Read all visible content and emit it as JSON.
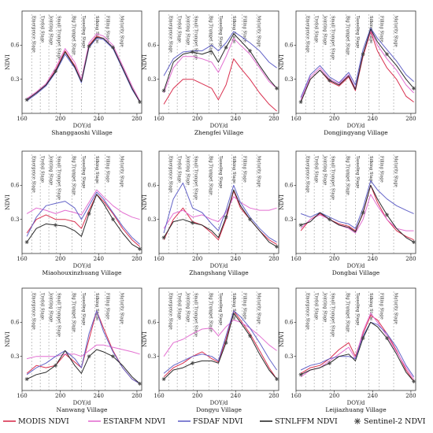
{
  "chart_data": {
    "type": "line",
    "xlabel": "DOY/d",
    "ylabel": "NDVI",
    "xlim": [
      160,
      285
    ],
    "ylim": [
      0,
      0.9
    ],
    "xticks": [
      160,
      200,
      240,
      280
    ],
    "yticks": [
      0.3,
      0.6
    ],
    "grid": false,
    "legend_position": "bottom",
    "colors": {
      "MODIS NDVI": "#d9304f",
      "ESTARFM NDVI": "#e36fd1",
      "FSDAF NDVI": "#6464c8",
      "STNLFFM NDVI": "#2a2a2a",
      "Sentinel-2 NDVI": "#444444"
    },
    "legend": [
      "MODIS NDVI",
      "ESTARFM NDVI",
      "FSDAF NDVI",
      "STNLFFM NDVI",
      "Sentinel-2 NDVI"
    ],
    "stages": [
      {
        "label": "Emergence Stage",
        "x": 170
      },
      {
        "label": "Trefoil Stage",
        "x": 179
      },
      {
        "label": "Jointing Stage",
        "x": 188
      },
      {
        "label": "Small Trumpet Stage",
        "x": 196
      },
      {
        "label": "Big Trumpet Stage",
        "x": 212
      },
      {
        "label": "Tasseling Stage",
        "x": 222
      },
      {
        "label": "Silking Stage",
        "x": 236
      },
      {
        "label": "Filling Stage",
        "x": 247
      },
      {
        "label": "Maturity Stage",
        "x": 262
      }
    ],
    "panels": [
      {
        "title": "Shanggaoshi Village",
        "x": [
          165,
          175,
          185,
          195,
          205,
          215,
          222,
          230,
          238,
          245,
          255,
          265,
          275,
          283
        ],
        "series": [
          {
            "name": "MODIS NDVI",
            "values": [
              0.12,
              0.18,
              0.25,
              0.38,
              0.55,
              0.42,
              0.28,
              0.6,
              0.68,
              0.66,
              0.58,
              0.4,
              0.22,
              0.1
            ]
          },
          {
            "name": "ESTARFM NDVI",
            "values": [
              0.13,
              0.19,
              0.26,
              0.4,
              0.57,
              0.45,
              0.3,
              0.62,
              0.7,
              0.68,
              0.6,
              0.42,
              0.24,
              0.11
            ]
          },
          {
            "name": "FSDAF NDVI",
            "values": [
              0.11,
              0.17,
              0.24,
              0.36,
              0.52,
              0.4,
              0.27,
              0.58,
              0.66,
              0.65,
              0.57,
              0.39,
              0.21,
              0.1
            ]
          },
          {
            "name": "STNLFFM NDVI",
            "values": [
              0.12,
              0.18,
              0.25,
              0.37,
              0.54,
              0.41,
              0.28,
              0.59,
              0.67,
              0.66,
              0.58,
              0.4,
              0.22,
              0.1
            ]
          }
        ]
      },
      {
        "title": "Zhengfei Village",
        "x": [
          165,
          175,
          185,
          195,
          205,
          215,
          222,
          230,
          238,
          245,
          255,
          265,
          275,
          283
        ],
        "series": [
          {
            "name": "MODIS NDVI",
            "values": [
              0.08,
              0.22,
              0.3,
              0.3,
              0.26,
              0.22,
              0.12,
              0.25,
              0.48,
              0.4,
              0.3,
              0.18,
              0.08,
              0.02
            ]
          },
          {
            "name": "ESTARFM NDVI",
            "values": [
              0.18,
              0.4,
              0.5,
              0.5,
              0.48,
              0.45,
              0.36,
              0.5,
              0.66,
              0.6,
              0.52,
              0.4,
              0.28,
              0.22
            ]
          },
          {
            "name": "FSDAF NDVI",
            "values": [
              0.33,
              0.48,
              0.54,
              0.55,
              0.55,
              0.6,
              0.55,
              0.62,
              0.72,
              0.68,
              0.62,
              0.55,
              0.45,
              0.4
            ]
          },
          {
            "name": "STNLFFM NDVI",
            "values": [
              0.2,
              0.45,
              0.52,
              0.54,
              0.52,
              0.55,
              0.45,
              0.58,
              0.7,
              0.64,
              0.55,
              0.42,
              0.3,
              0.22
            ]
          }
        ]
      },
      {
        "title": "Dongjingyang Village",
        "x": [
          165,
          175,
          185,
          195,
          205,
          215,
          222,
          230,
          238,
          245,
          255,
          265,
          275,
          283
        ],
        "series": [
          {
            "name": "MODIS NDVI",
            "values": [
              0.1,
              0.3,
              0.38,
              0.28,
              0.24,
              0.32,
              0.2,
              0.5,
              0.72,
              0.55,
              0.4,
              0.3,
              0.15,
              0.1
            ]
          },
          {
            "name": "ESTARFM NDVI",
            "values": [
              0.12,
              0.32,
              0.4,
              0.3,
              0.26,
              0.34,
              0.22,
              0.52,
              0.73,
              0.6,
              0.48,
              0.38,
              0.25,
              0.18
            ]
          },
          {
            "name": "FSDAF NDVI",
            "values": [
              0.14,
              0.34,
              0.42,
              0.32,
              0.27,
              0.36,
              0.25,
              0.56,
              0.75,
              0.66,
              0.56,
              0.46,
              0.34,
              0.28
            ]
          },
          {
            "name": "STNLFFM NDVI",
            "values": [
              0.1,
              0.3,
              0.38,
              0.29,
              0.25,
              0.33,
              0.21,
              0.52,
              0.74,
              0.63,
              0.52,
              0.42,
              0.3,
              0.22
            ]
          }
        ]
      },
      {
        "title": "Miaohouxinzhuang Village",
        "x": [
          165,
          175,
          185,
          195,
          205,
          215,
          222,
          230,
          238,
          245,
          255,
          265,
          275,
          283
        ],
        "series": [
          {
            "name": "MODIS NDVI",
            "values": [
              0.18,
              0.3,
              0.34,
              0.3,
              0.3,
              0.28,
              0.22,
              0.38,
              0.52,
              0.46,
              0.35,
              0.22,
              0.12,
              0.06
            ]
          },
          {
            "name": "ESTARFM NDVI",
            "values": [
              0.35,
              0.4,
              0.38,
              0.35,
              0.38,
              0.36,
              0.34,
              0.45,
              0.56,
              0.5,
              0.42,
              0.36,
              0.32,
              0.3
            ]
          },
          {
            "name": "FSDAF NDVI",
            "values": [
              0.15,
              0.32,
              0.42,
              0.44,
              0.46,
              0.4,
              0.3,
              0.42,
              0.54,
              0.48,
              0.36,
              0.24,
              0.14,
              0.08
            ]
          },
          {
            "name": "STNLFFM NDVI",
            "values": [
              0.1,
              0.22,
              0.26,
              0.25,
              0.24,
              0.2,
              0.15,
              0.35,
              0.52,
              0.44,
              0.3,
              0.18,
              0.08,
              0.04
            ]
          }
        ]
      },
      {
        "title": "Zhangshang Village",
        "x": [
          165,
          175,
          185,
          195,
          205,
          215,
          222,
          230,
          238,
          245,
          255,
          265,
          275,
          283
        ],
        "series": [
          {
            "name": "MODIS NDVI",
            "values": [
              0.12,
              0.3,
              0.4,
              0.28,
              0.25,
              0.18,
              0.12,
              0.3,
              0.55,
              0.4,
              0.3,
              0.2,
              0.12,
              0.08
            ]
          },
          {
            "name": "ESTARFM NDVI",
            "values": [
              0.22,
              0.35,
              0.38,
              0.32,
              0.34,
              0.3,
              0.28,
              0.36,
              0.5,
              0.45,
              0.4,
              0.38,
              0.38,
              0.4
            ]
          },
          {
            "name": "FSDAF NDVI",
            "values": [
              0.18,
              0.48,
              0.62,
              0.4,
              0.36,
              0.26,
              0.2,
              0.38,
              0.6,
              0.45,
              0.32,
              0.22,
              0.14,
              0.1
            ]
          },
          {
            "name": "STNLFFM NDVI",
            "values": [
              0.14,
              0.28,
              0.3,
              0.27,
              0.25,
              0.2,
              0.14,
              0.32,
              0.56,
              0.42,
              0.3,
              0.2,
              0.1,
              0.06
            ]
          }
        ]
      },
      {
        "title": "Dongbai Village",
        "x": [
          165,
          175,
          185,
          195,
          205,
          215,
          222,
          230,
          238,
          245,
          255,
          265,
          275,
          283
        ],
        "series": [
          {
            "name": "MODIS NDVI",
            "values": [
              0.2,
              0.3,
              0.35,
              0.3,
              0.26,
              0.24,
              0.2,
              0.35,
              0.6,
              0.45,
              0.3,
              0.2,
              0.15,
              0.12
            ]
          },
          {
            "name": "ESTARFM NDVI",
            "values": [
              0.22,
              0.3,
              0.34,
              0.3,
              0.25,
              0.22,
              0.18,
              0.3,
              0.52,
              0.42,
              0.3,
              0.22,
              0.2,
              0.2
            ]
          },
          {
            "name": "FSDAF NDVI",
            "values": [
              0.35,
              0.32,
              0.36,
              0.32,
              0.28,
              0.26,
              0.22,
              0.4,
              0.64,
              0.56,
              0.48,
              0.42,
              0.38,
              0.35
            ]
          },
          {
            "name": "STNLFFM NDVI",
            "values": [
              0.25,
              0.28,
              0.36,
              0.3,
              0.25,
              0.23,
              0.19,
              0.36,
              0.6,
              0.48,
              0.34,
              0.22,
              0.14,
              0.1
            ]
          }
        ]
      },
      {
        "title": "Nanwang Village",
        "x": [
          165,
          175,
          185,
          195,
          205,
          215,
          222,
          230,
          238,
          245,
          255,
          265,
          275,
          283
        ],
        "series": [
          {
            "name": "MODIS NDVI",
            "values": [
              0.15,
              0.22,
              0.2,
              0.22,
              0.32,
              0.25,
              0.2,
              0.45,
              0.7,
              0.55,
              0.35,
              0.2,
              0.1,
              0.06
            ]
          },
          {
            "name": "ESTARFM NDVI",
            "values": [
              0.28,
              0.3,
              0.3,
              0.3,
              0.32,
              0.32,
              0.3,
              0.35,
              0.4,
              0.4,
              0.38,
              0.36,
              0.34,
              0.32
            ]
          },
          {
            "name": "FSDAF NDVI",
            "values": [
              0.14,
              0.2,
              0.24,
              0.3,
              0.35,
              0.28,
              0.2,
              0.5,
              0.7,
              0.52,
              0.34,
              0.2,
              0.1,
              0.06
            ]
          },
          {
            "name": "STNLFFM NDVI",
            "values": [
              0.1,
              0.14,
              0.16,
              0.22,
              0.35,
              0.22,
              0.15,
              0.3,
              0.36,
              0.34,
              0.3,
              0.22,
              0.12,
              0.06
            ]
          }
        ]
      },
      {
        "title": "Dongyu Village",
        "x": [
          165,
          175,
          185,
          195,
          205,
          215,
          222,
          230,
          238,
          245,
          255,
          265,
          275,
          283
        ],
        "series": [
          {
            "name": "MODIS NDVI",
            "values": [
              0.12,
              0.2,
              0.24,
              0.3,
              0.34,
              0.28,
              0.25,
              0.45,
              0.7,
              0.62,
              0.5,
              0.35,
              0.2,
              0.1
            ]
          },
          {
            "name": "ESTARFM NDVI",
            "values": [
              0.3,
              0.42,
              0.45,
              0.5,
              0.54,
              0.55,
              0.48,
              0.56,
              0.62,
              0.6,
              0.55,
              0.48,
              0.4,
              0.35
            ]
          },
          {
            "name": "FSDAF NDVI",
            "values": [
              0.15,
              0.22,
              0.26,
              0.3,
              0.32,
              0.3,
              0.26,
              0.48,
              0.7,
              0.65,
              0.55,
              0.42,
              0.28,
              0.18
            ]
          },
          {
            "name": "STNLFFM NDVI",
            "values": [
              0.1,
              0.18,
              0.2,
              0.24,
              0.26,
              0.26,
              0.24,
              0.42,
              0.68,
              0.6,
              0.48,
              0.32,
              0.18,
              0.1
            ]
          }
        ]
      },
      {
        "title": "Leijiazhuang Village",
        "x": [
          165,
          175,
          185,
          195,
          205,
          215,
          222,
          230,
          238,
          245,
          255,
          265,
          275,
          283
        ],
        "series": [
          {
            "name": "MODIS NDVI",
            "values": [
              0.15,
              0.2,
              0.22,
              0.28,
              0.36,
              0.42,
              0.3,
              0.5,
              0.66,
              0.62,
              0.5,
              0.35,
              0.18,
              0.08
            ]
          },
          {
            "name": "ESTARFM NDVI",
            "values": [
              0.12,
              0.18,
              0.2,
              0.26,
              0.32,
              0.38,
              0.28,
              0.52,
              0.68,
              0.6,
              0.48,
              0.34,
              0.2,
              0.1
            ]
          },
          {
            "name": "FSDAF NDVI",
            "values": [
              0.18,
              0.22,
              0.24,
              0.28,
              0.3,
              0.3,
              0.28,
              0.48,
              0.6,
              0.58,
              0.5,
              0.38,
              0.22,
              0.12
            ]
          },
          {
            "name": "STNLFFM NDVI",
            "values": [
              0.14,
              0.18,
              0.2,
              0.24,
              0.3,
              0.32,
              0.26,
              0.46,
              0.6,
              0.56,
              0.46,
              0.32,
              0.16,
              0.08
            ]
          }
        ]
      }
    ]
  }
}
